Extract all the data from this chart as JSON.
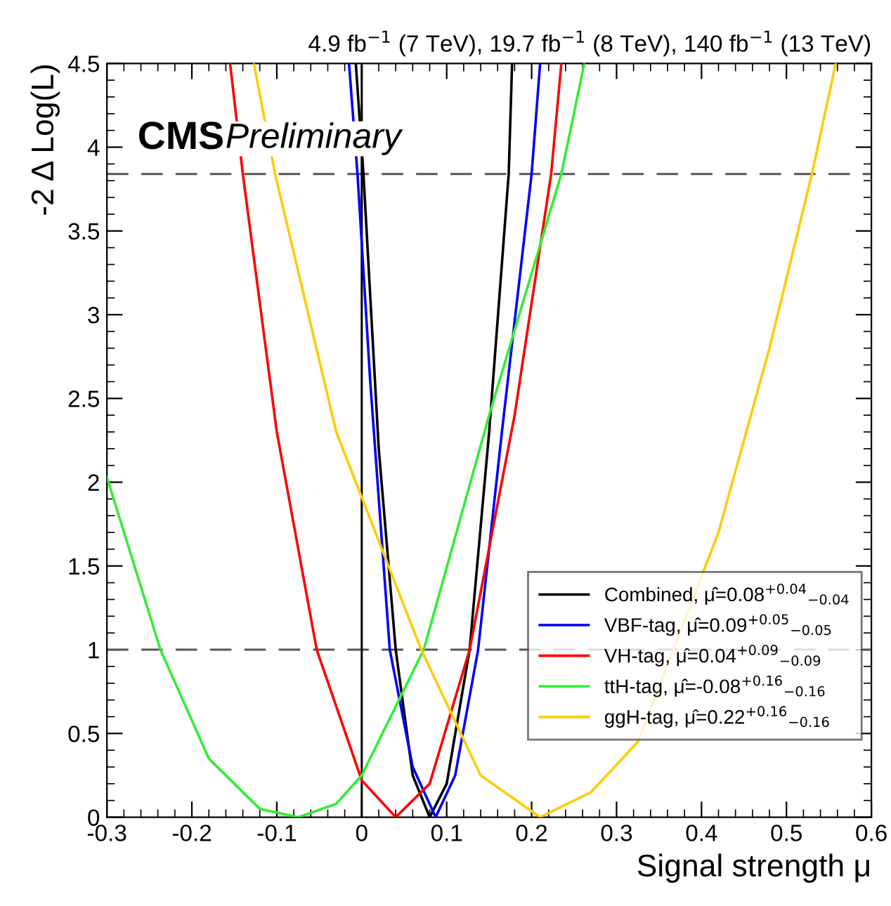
{
  "chart_data": {
    "type": "line",
    "title": "4.9 fb$^{−1}$ (7 TeV), 19.7 fb$^{−1}$ (8 TeV), 140 fb$^{−1}$ (13 TeV)",
    "xlabel": "Signal strength μ",
    "ylabel": "-2 Δ Log(L)",
    "annotations": [
      "CMS",
      "Preliminary"
    ],
    "series": [
      {
        "name": "Combined, μ̂=0.08$^{+0.04}$$_{−0.04}$",
        "color": "#000000",
        "x": [
          -0.007,
          0.002,
          0.02,
          0.04,
          0.06,
          0.08,
          0.1,
          0.127,
          0.15,
          0.173,
          0.177
        ],
        "values": [
          4.5,
          3.84,
          2.2,
          1.0,
          0.25,
          0,
          0.2,
          1.0,
          2.3,
          3.84,
          4.5
        ]
      },
      {
        "name": "VBF-tag, μ̂=0.09$^{+0.05}$$_{−0.05}$",
        "color": "#0000ff",
        "x": [
          -0.015,
          -0.005,
          0.01,
          0.033,
          0.06,
          0.087,
          0.11,
          0.137,
          0.165,
          0.2,
          0.21
        ],
        "values": [
          4.5,
          3.84,
          2.6,
          1.0,
          0.3,
          0,
          0.25,
          1.0,
          2.3,
          3.84,
          4.5
        ]
      },
      {
        "name": "VH-tag, μ̂=0.04$^{+0.09}$$_{−0.09}$",
        "color": "#ff0000",
        "x": [
          -0.155,
          -0.14,
          -0.1,
          -0.053,
          0,
          0.04,
          0.08,
          0.127,
          0.18,
          0.223,
          0.235
        ],
        "values": [
          4.5,
          3.84,
          2.3,
          1.0,
          0.22,
          0,
          0.2,
          1.0,
          2.4,
          3.84,
          4.5
        ]
      },
      {
        "name": "ttH-tag, μ̂=-0.08$^{+0.16}$$_{−0.16}$",
        "color": "#33ee33",
        "x": [
          -0.3,
          -0.237,
          -0.18,
          -0.12,
          -0.075,
          -0.03,
          0,
          0.073,
          0.15,
          0.235,
          0.262
        ],
        "values": [
          2.03,
          1.0,
          0.35,
          0.05,
          0,
          0.08,
          0.25,
          1.0,
          2.4,
          3.84,
          4.5
        ]
      },
      {
        "name": "ggH-tag, μ̂=0.22$^{+0.16}$$_{−0.16}$",
        "color": "#ffcc00",
        "x": [
          -0.127,
          -0.102,
          -0.03,
          0.07,
          0.14,
          0.21,
          0.27,
          0.325,
          0.42,
          0.48,
          0.53,
          0.558
        ],
        "values": [
          4.5,
          3.84,
          2.3,
          1.0,
          0.25,
          0,
          0.15,
          0.45,
          1.7,
          2.8,
          3.84,
          4.5
        ]
      }
    ],
    "ref_lines": [
      {
        "axis": "y",
        "value": 3.84,
        "color": "#555555",
        "line_style": "dashed"
      },
      {
        "axis": "y",
        "value": 1,
        "color": "#555555",
        "line_style": "dashed"
      },
      {
        "axis": "x",
        "value": 0,
        "color": "#000000",
        "line_style": "solid"
      }
    ],
    "xlim": [
      -0.3,
      0.6
    ],
    "ylim": [
      0,
      4.5
    ],
    "xticks": [
      -0.3,
      -0.2,
      -0.1,
      0,
      0.1,
      0.2,
      0.3,
      0.4,
      0.5,
      0.6
    ],
    "yticks": [
      0,
      0.5,
      1,
      1.5,
      2,
      2.5,
      3,
      3.5,
      4,
      4.5
    ],
    "legend": "bottom right",
    "grid": false,
    "marker": "none",
    "line_style": "solid"
  }
}
